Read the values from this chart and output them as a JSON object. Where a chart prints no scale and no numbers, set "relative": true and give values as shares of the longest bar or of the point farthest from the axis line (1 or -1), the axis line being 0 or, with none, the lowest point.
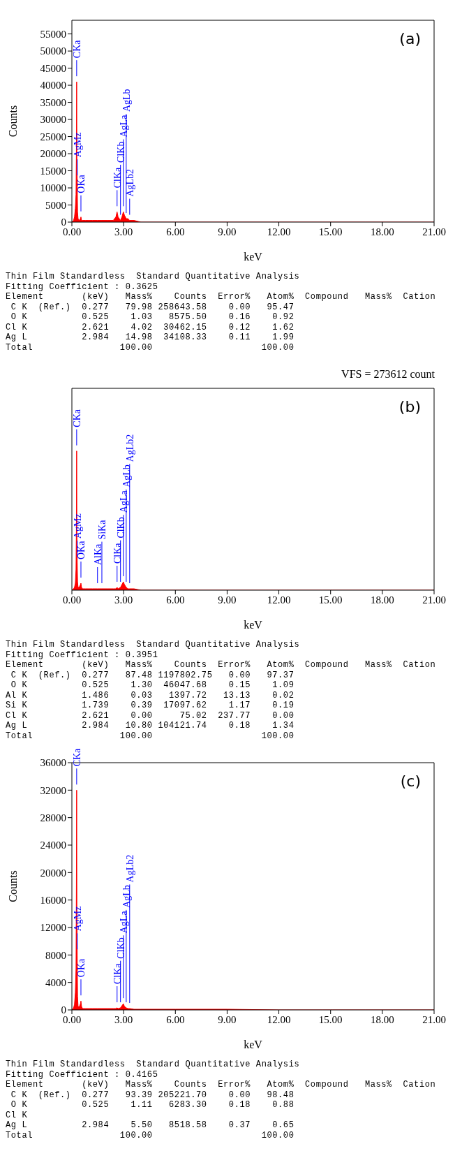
{
  "chart_data": [
    {
      "type": "area",
      "title": "(a)",
      "xlabel": "keV",
      "ylabel": "Counts",
      "color": "#ff0000",
      "x": [
        0,
        0.1,
        0.15,
        0.2,
        0.24,
        0.26,
        0.277,
        0.29,
        0.31,
        0.33,
        0.36,
        0.42,
        0.5,
        0.525,
        0.56,
        0.62,
        0.8,
        1.0,
        1.2,
        1.486,
        1.739,
        2.1,
        2.4,
        2.55,
        2.621,
        2.68,
        2.82,
        2.9,
        2.984,
        3.05,
        3.15,
        3.25,
        3.35,
        3.6,
        4.0,
        6.0,
        9.0,
        12.0,
        14.5,
        15.0,
        15.1,
        17.0,
        21.0
      ],
      "values": [
        0,
        500,
        1500,
        4000,
        8000,
        20000,
        41000,
        18000,
        12000,
        3000,
        1000,
        500,
        1000,
        1500,
        500,
        500,
        500,
        500,
        500,
        500,
        500,
        500,
        500,
        1500,
        3000,
        1500,
        500,
        1500,
        3000,
        2000,
        1000,
        1000,
        500,
        500,
        0,
        0,
        0,
        0,
        0,
        0,
        0,
        0,
        0
      ],
      "xlim": [
        0,
        21
      ],
      "xticks": [
        {
          "value": 0,
          "label": "0.00"
        },
        {
          "value": 3,
          "label": "3.00"
        },
        {
          "value": 6,
          "label": "6.00"
        },
        {
          "value": 9,
          "label": "9.00"
        },
        {
          "value": 12,
          "label": "12.00"
        },
        {
          "value": 15,
          "label": "15.00"
        },
        {
          "value": 18,
          "label": "18.00"
        },
        {
          "value": 21,
          "label": "21.00"
        }
      ],
      "ylim": [
        0,
        59000
      ],
      "yticks": [
        0,
        5000,
        10000,
        15000,
        20000,
        25000,
        30000,
        35000,
        40000,
        45000,
        50000,
        55000
      ],
      "annotations": [
        {
          "text": "CKa",
          "x": 0.277,
          "y": 41000
        },
        {
          "text": "AgMz",
          "x": 0.31,
          "y": 12000
        },
        {
          "text": "OKa",
          "x": 0.525,
          "y": 1500
        },
        {
          "text": "ClKa",
          "x": 2.621,
          "y": 3000
        },
        {
          "text": "ClKb",
          "x": 2.82,
          "y": 500
        },
        {
          "text": "AgLa",
          "x": 2.984,
          "y": 3000
        },
        {
          "text": "AgLb",
          "x": 3.15,
          "y": 1000
        },
        {
          "text": "AgLb2",
          "x": 3.35,
          "y": 500
        },
        "Thin Film Standardless  Standard Quantitative Analysis",
        "Fitting Coefficient : 0.3625",
        "Element       (keV)   Mass%    Counts  Error%   Atom%  Compound   Mass%  Cation",
        " C K  (Ref.)  0.277   79.98 258643.58    0.00   95.47",
        " O K          0.525    1.03   8575.50    0.16    0.92",
        "Cl K          2.621    4.02  30462.15    0.12    1.62",
        "Ag L          2.984   14.98  34108.33    0.11    1.99",
        "Total                100.00                    100.00"
      ]
    },
    {
      "type": "area",
      "title": "(b)",
      "subtitle": "VFS = 273612 count",
      "xlabel": "keV",
      "color": "#ff0000",
      "relative": true,
      "tick_labels": "x",
      "x": [
        0,
        0.1,
        0.15,
        0.2,
        0.24,
        0.26,
        0.277,
        0.29,
        0.31,
        0.33,
        0.36,
        0.42,
        0.5,
        0.525,
        0.56,
        0.62,
        0.8,
        1.0,
        1.2,
        1.486,
        1.739,
        2.1,
        2.4,
        2.55,
        2.621,
        2.68,
        2.82,
        2.9,
        2.984,
        3.05,
        3.15,
        3.25,
        3.35,
        3.6,
        4.0,
        6.0,
        9.0,
        12.0,
        14.5,
        15.0,
        15.1,
        17.0,
        21.0
      ],
      "values": [
        0,
        0.01,
        0.02,
        0.05,
        0.15,
        0.44,
        1,
        0.4,
        0.2,
        0.06,
        0.02,
        0.02,
        0.04,
        0.05,
        0.02,
        0.01,
        0.01,
        0.01,
        0.01,
        0.01,
        0.01,
        0.01,
        0.01,
        0.01,
        0.02,
        0.01,
        0.02,
        0.04,
        0.06,
        0.04,
        0.02,
        0.01,
        0.01,
        0.01,
        0,
        0,
        0,
        0,
        0,
        0,
        0,
        0,
        0
      ],
      "xlim": [
        0,
        21
      ],
      "xticks": [
        {
          "value": 0,
          "label": "0.00"
        },
        {
          "value": 3,
          "label": "3.00"
        },
        {
          "value": 6,
          "label": "6.00"
        },
        {
          "value": 9,
          "label": "9.00"
        },
        {
          "value": 12,
          "label": "12.00"
        },
        {
          "value": 15,
          "label": "15.00"
        },
        {
          "value": 18,
          "label": "18.00"
        },
        {
          "value": 21,
          "label": "21.00"
        }
      ],
      "annotations": [
        {
          "text": "CKa",
          "x": 0.277,
          "y": 1
        },
        {
          "text": "AgMz",
          "x": 0.31,
          "y": 0.2
        },
        {
          "text": "OKa",
          "x": 0.525,
          "y": 0.05
        },
        {
          "text": "AlKa",
          "x": 1.486,
          "y": 0.01
        },
        {
          "text": "SiKa",
          "x": 1.739,
          "y": 0.01
        },
        {
          "text": "ClKa",
          "x": 2.621,
          "y": 0.02
        },
        {
          "text": "ClKb",
          "x": 2.82,
          "y": 0.02
        },
        {
          "text": "AgLa",
          "x": 2.984,
          "y": 0.06
        },
        {
          "text": "AgLb",
          "x": 3.15,
          "y": 0.02
        },
        {
          "text": "AgLb2",
          "x": 3.35,
          "y": 0.01
        },
        "Thin Film Standardless  Standard Quantitative Analysis",
        "Fitting Coefficient : 0.3951",
        "Element       (keV)   Mass%    Counts  Error%   Atom%  Compound   Mass%  Cation",
        " C K  (Ref.)  0.277   87.48 1197802.75   0.00   97.37",
        " O K          0.525    1.30  46047.68    0.15    1.09",
        "Al K          1.486    0.03   1397.72   13.13    0.02",
        "Si K          1.739    0.39  17097.62    1.17    0.19",
        "Cl K          2.621    0.00     75.02  237.77    0.00",
        "Ag L          2.984   10.80 104121.74    0.18    1.34",
        "Total                100.00                    100.00"
      ]
    },
    {
      "type": "area",
      "title": "(c)",
      "xlabel": "keV",
      "ylabel": "Counts",
      "color": "#ff0000",
      "x": [
        0,
        0.1,
        0.15,
        0.2,
        0.24,
        0.26,
        0.277,
        0.29,
        0.31,
        0.33,
        0.36,
        0.42,
        0.5,
        0.525,
        0.56,
        0.62,
        0.8,
        1.0,
        1.2,
        1.486,
        1.739,
        2.1,
        2.4,
        2.55,
        2.621,
        2.68,
        2.82,
        2.9,
        2.984,
        3.05,
        3.15,
        3.25,
        3.35,
        3.6,
        4.0,
        6.0,
        9.0,
        12.0,
        14.5,
        15.0,
        15.1,
        17.0,
        21.0
      ],
      "values": [
        0,
        300,
        800,
        2500,
        6000,
        18000,
        32000,
        14000,
        8000,
        2000,
        500,
        400,
        900,
        1300,
        500,
        200,
        200,
        200,
        200,
        200,
        200,
        200,
        200,
        200,
        300,
        200,
        300,
        600,
        900,
        500,
        300,
        200,
        200,
        100,
        100,
        100,
        100,
        0,
        0,
        0,
        0,
        0,
        0
      ],
      "xlim": [
        0,
        21
      ],
      "xticks": [
        {
          "value": 0,
          "label": "0.00"
        },
        {
          "value": 3,
          "label": "3.00"
        },
        {
          "value": 6,
          "label": "6.00"
        },
        {
          "value": 9,
          "label": "9.00"
        },
        {
          "value": 12,
          "label": "12.00"
        },
        {
          "value": 15,
          "label": "15.00"
        },
        {
          "value": 18,
          "label": "18.00"
        },
        {
          "value": 21,
          "label": "21.00"
        }
      ],
      "ylim": [
        0,
        36000
      ],
      "yticks": [
        0,
        4000,
        8000,
        12000,
        16000,
        20000,
        24000,
        28000,
        32000,
        36000
      ],
      "annotations": [
        {
          "text": "CKa",
          "x": 0.277,
          "y": 32000
        },
        {
          "text": "AgMz",
          "x": 0.31,
          "y": 8000
        },
        {
          "text": "OKa",
          "x": 0.525,
          "y": 1300
        },
        {
          "text": "ClKa",
          "x": 2.621,
          "y": 300
        },
        {
          "text": "ClKb",
          "x": 2.82,
          "y": 300
        },
        {
          "text": "AgLa",
          "x": 2.984,
          "y": 900
        },
        {
          "text": "AgLb",
          "x": 3.15,
          "y": 300
        },
        {
          "text": "AgLb2",
          "x": 3.35,
          "y": 200
        },
        "Thin Film Standardless  Standard Quantitative Analysis",
        "Fitting Coefficient : 0.4165",
        "Element       (keV)   Mass%    Counts  Error%   Atom%  Compound   Mass%  Cation",
        " C K  (Ref.)  0.277   93.39 205221.70    0.00   98.48",
        " O K          0.525    1.11   6283.30    0.18    0.88",
        "Cl K",
        "Ag L          2.984    5.50   8518.58    0.37    0.65",
        "Total                100.00                    100.00"
      ]
    }
  ]
}
